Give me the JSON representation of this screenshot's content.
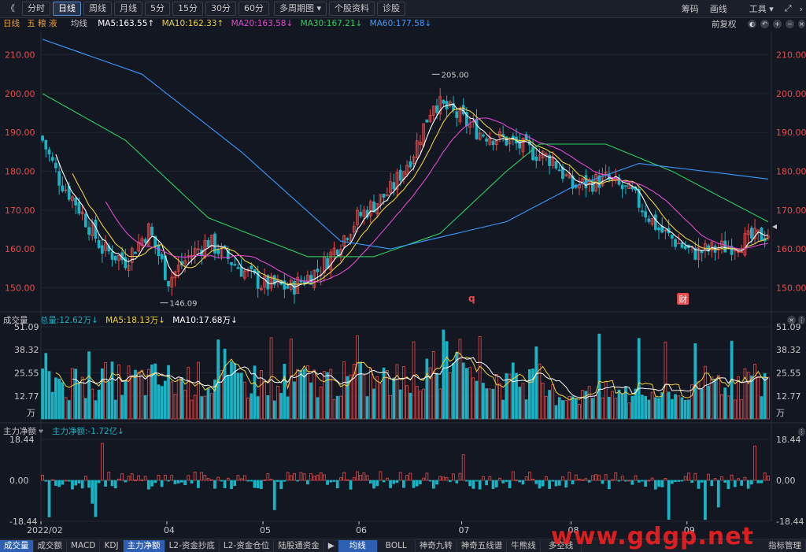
{
  "toolbar": {
    "back": "《",
    "periods": [
      "分时",
      "日线",
      "周线",
      "月线",
      "5分",
      "15分",
      "30分",
      "60分"
    ],
    "active_period": 1,
    "multi_period": "多周期图",
    "profile": "个股资料",
    "diagnose": "诊股",
    "right": [
      "筹码",
      "画线",
      "工具"
    ]
  },
  "main_legend": {
    "period": "日线",
    "stock": "五 粮 液",
    "type": "均线",
    "ma5": "MA5:163.55↑",
    "ma10": "MA10:162.33↑",
    "ma20": "MA20:163.58↓",
    "ma30": "MA30:167.21↓",
    "ma60": "MA60:177.58↓",
    "adjust": "前复权"
  },
  "vol_legend": {
    "title": "成交量",
    "total": "总量:12.62万↓",
    "ma5": "MA5:18.13万↓",
    "ma10": "MA10:17.68万↓"
  },
  "flow_legend": {
    "title": "主力净额 ▾",
    "value": "主力净额:-1.72亿↓"
  },
  "colors": {
    "up": "#e84c4c",
    "down": "#1bb3c4",
    "ma5": "#ffffff",
    "ma10": "#f0d040",
    "ma20": "#e04ad0",
    "ma30": "#2fd060",
    "ma60": "#3a9aff"
  },
  "chart_data": [
    {
      "type": "candlestick",
      "ylim": [
        145,
        215
      ],
      "yticks": [
        "210.00",
        "200.00",
        "190.00",
        "180.00",
        "170.00",
        "160.00",
        "150.00"
      ],
      "xticks": [
        "2022/02",
        "04",
        "05",
        "06",
        "07",
        "08",
        "09"
      ],
      "high_label": "205.00",
      "low_label": "146.09",
      "markers": [
        "q",
        "财"
      ],
      "close_keypoints": [
        [
          0,
          188
        ],
        [
          5,
          178
        ],
        [
          10,
          172
        ],
        [
          18,
          160
        ],
        [
          25,
          157
        ],
        [
          32,
          165
        ],
        [
          38,
          152
        ],
        [
          44,
          158
        ],
        [
          50,
          162
        ],
        [
          58,
          156
        ],
        [
          66,
          151
        ],
        [
          75,
          150
        ],
        [
          84,
          155
        ],
        [
          95,
          168
        ],
        [
          105,
          175
        ],
        [
          112,
          185
        ],
        [
          118,
          198
        ],
        [
          124,
          195
        ],
        [
          132,
          190
        ],
        [
          140,
          188
        ],
        [
          148,
          185
        ],
        [
          154,
          183
        ],
        [
          160,
          176
        ],
        [
          170,
          178
        ],
        [
          178,
          174
        ],
        [
          186,
          165
        ],
        [
          196,
          159
        ],
        [
          204,
          160
        ],
        [
          212,
          162
        ],
        [
          219,
          164
        ]
      ],
      "ma60_keypoints": [
        [
          0,
          214
        ],
        [
          30,
          205
        ],
        [
          60,
          185
        ],
        [
          90,
          162
        ],
        [
          105,
          160
        ],
        [
          120,
          163
        ],
        [
          140,
          167
        ],
        [
          160,
          176
        ],
        [
          180,
          182
        ],
        [
          200,
          180
        ],
        [
          219,
          178
        ]
      ],
      "ma30_keypoints": [
        [
          0,
          200
        ],
        [
          25,
          188
        ],
        [
          50,
          168
        ],
        [
          80,
          158
        ],
        [
          100,
          158
        ],
        [
          120,
          164
        ],
        [
          140,
          180
        ],
        [
          150,
          187
        ],
        [
          170,
          187
        ],
        [
          190,
          180
        ],
        [
          210,
          171
        ],
        [
          219,
          167
        ]
      ]
    },
    {
      "type": "bar",
      "title": "成交量",
      "unit": "万",
      "yticks": [
        "51.09",
        "38.32",
        "25.55",
        "12.77"
      ],
      "ylim": [
        0,
        51.09
      ]
    },
    {
      "type": "bar",
      "title": "主力净额",
      "yticks": [
        "18.44",
        "0.00",
        "-18.44"
      ],
      "ylim": [
        -18.44,
        18.44
      ]
    }
  ],
  "tabs": [
    "成交量",
    "成交额",
    "MACD",
    "KDJ",
    "主力净额",
    "L2-资金抄底",
    "L2-资金仓位",
    "陆股通资金",
    "均线",
    "BOLL",
    "神奇九转",
    "神奇五线谱",
    "牛熊线",
    "多空线",
    "指标管理"
  ],
  "active_tab_left": 4,
  "active_tab_right": 8,
  "watermark": "www.gdgp.net"
}
